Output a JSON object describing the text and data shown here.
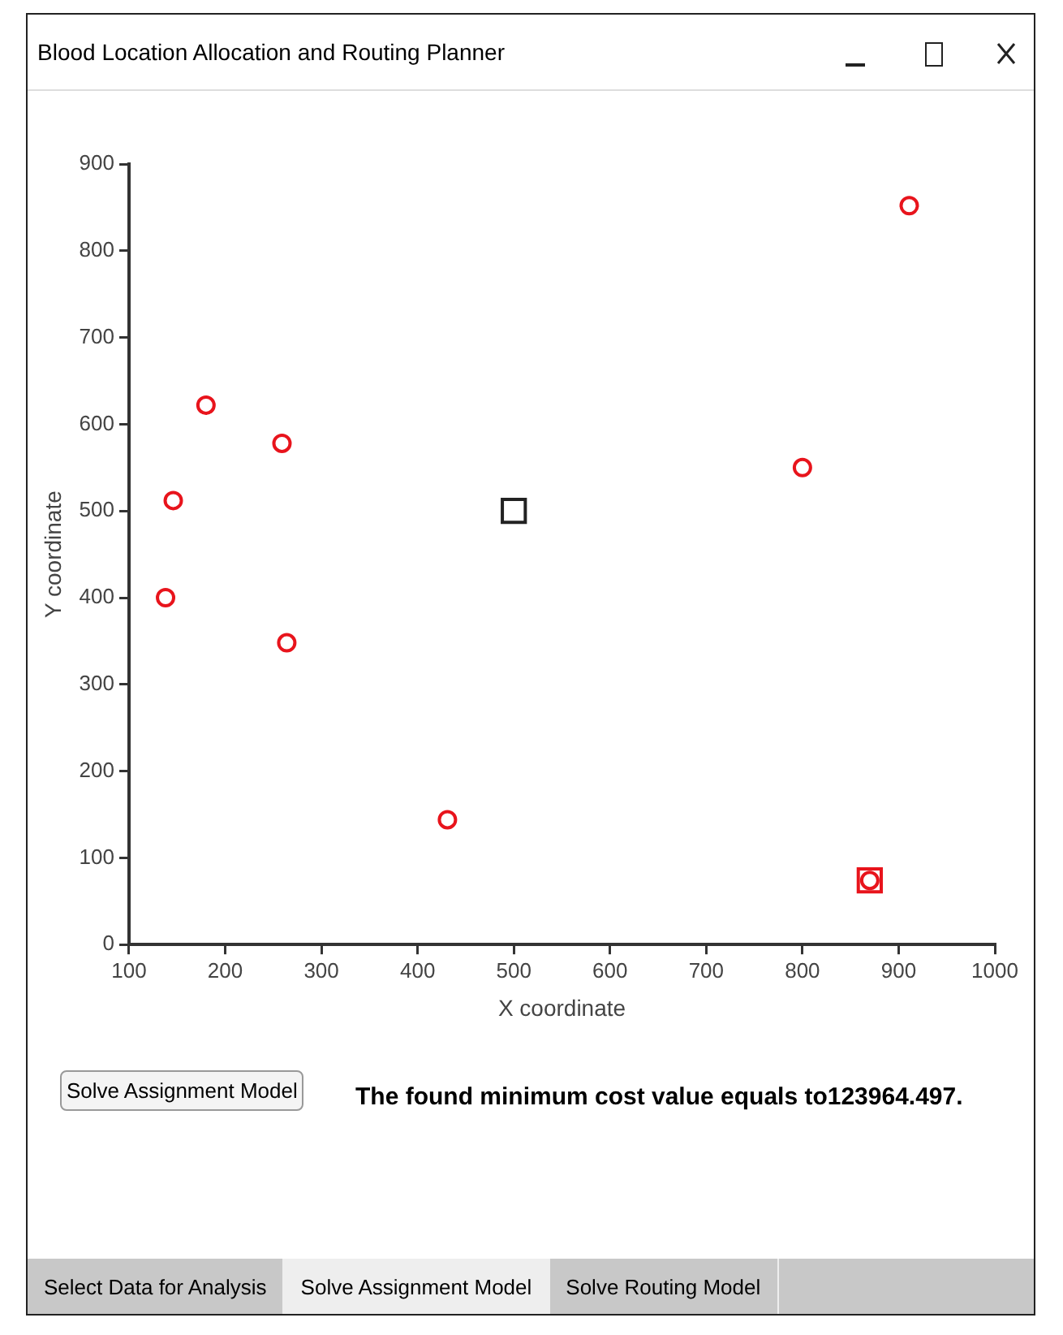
{
  "chart_data": {
    "type": "scatter",
    "title": "Blood Location Allocation and Routing Planner",
    "xlabel": "X coordinate",
    "ylabel": "Y coordinate",
    "xlim": [
      100,
      1000
    ],
    "xticks": [
      100,
      200,
      300,
      400,
      500,
      600,
      700,
      800,
      900,
      1000
    ],
    "ylim": [
      0,
      900
    ],
    "yticks": [
      0,
      100,
      200,
      300,
      400,
      500,
      600,
      700,
      800,
      900
    ],
    "grid": false,
    "legend": false,
    "series": [
      {
        "color": "#e8141c",
        "marker": "circle",
        "x": [
          138,
          146,
          180,
          259,
          264,
          431,
          800,
          911,
          870
        ],
        "values": [
          400,
          512,
          622,
          578,
          348,
          144,
          550,
          852,
          74
        ]
      },
      {
        "color": "#e8141c",
        "marker": "square",
        "x": [
          870
        ],
        "values": [
          74
        ]
      },
      {
        "color": "#222222",
        "marker": "square",
        "x": [
          500
        ],
        "values": [
          500
        ]
      }
    ],
    "annotations": [
      "Solve Assignment Model",
      "The found minimum cost value equals to123964.497.",
      "Select Data for Analysis",
      "Solve Assignment Model",
      "Solve Routing Model"
    ]
  }
}
